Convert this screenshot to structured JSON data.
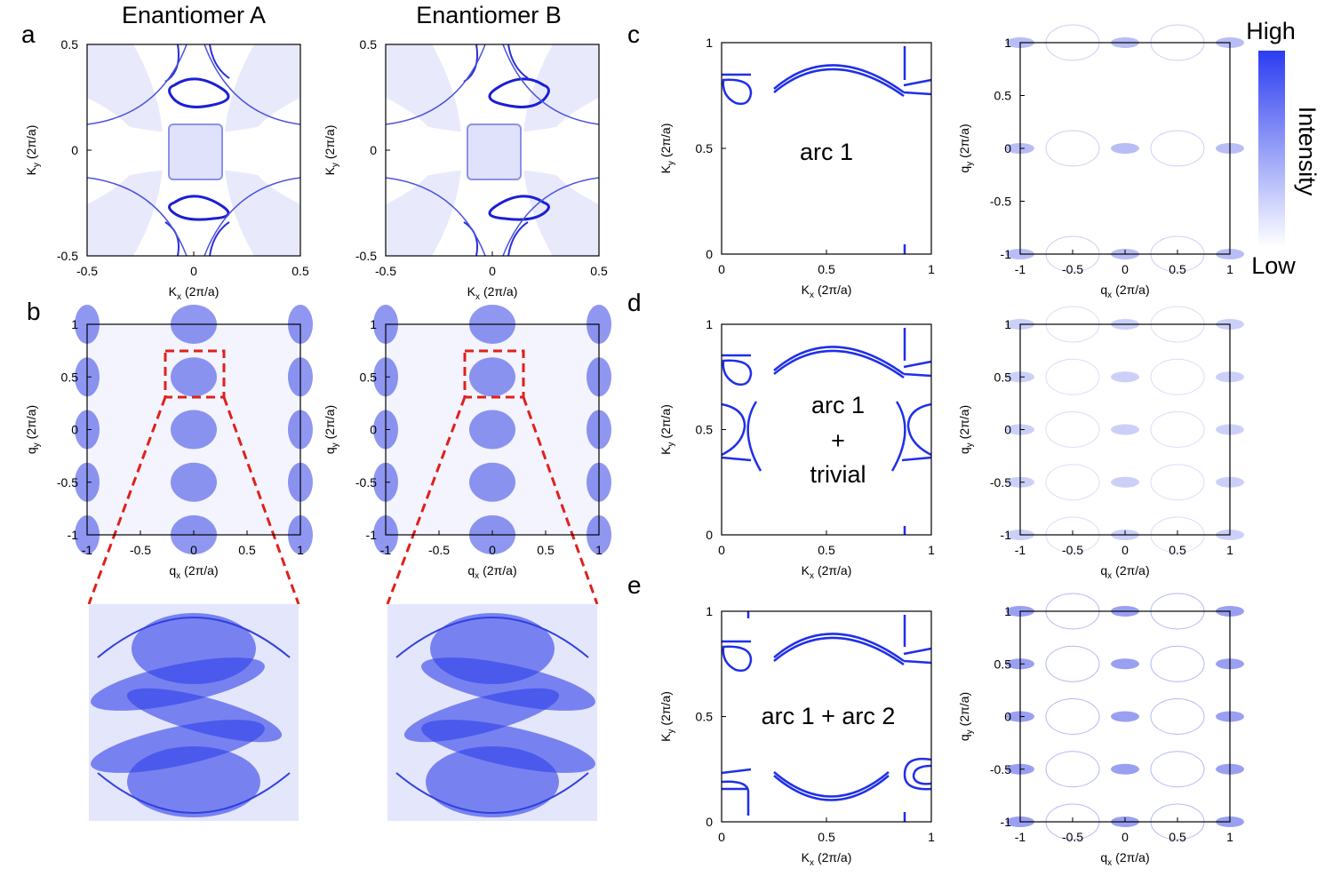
{
  "titles": [
    "Enantiomer A",
    "Enantiomer B"
  ],
  "panel_labels": [
    "a",
    "b",
    "c",
    "d",
    "e"
  ],
  "colorbar": {
    "high": "High",
    "low": "Low",
    "label": "Intensity"
  },
  "annotations": {
    "c": [
      "arc 1"
    ],
    "d": [
      "arc 1",
      "+",
      "trivial"
    ],
    "e": [
      "arc 1 + arc 2"
    ]
  },
  "plots": [
    {
      "xticks": [
        -0.5,
        0,
        0.5
      ],
      "yticks": [
        -0.5,
        0,
        0.5
      ],
      "xlabel": [
        "K",
        "x",
        "(2π/a)"
      ],
      "ylabel": [
        "K",
        "y",
        "(2π/a)"
      ]
    },
    {
      "xticks": [
        -0.5,
        0,
        0.5
      ],
      "yticks": [
        -0.5,
        0,
        0.5
      ],
      "xlabel": [
        "K",
        "x",
        "(2π/a)"
      ],
      "ylabel": [
        "K",
        "y",
        "(2π/a)"
      ]
    },
    {
      "xticks": [
        -1,
        -0.5,
        0,
        0.5,
        1
      ],
      "yticks": [
        -1,
        -0.5,
        0,
        0.5,
        1
      ],
      "xlabel": [
        "q",
        "x",
        "(2π/a)"
      ],
      "ylabel": [
        "q",
        "y",
        "(2π/a)"
      ]
    },
    {
      "xticks": [
        -1,
        -0.5,
        0,
        0.5,
        1
      ],
      "yticks": [
        -1,
        -0.5,
        0,
        0.5,
        1
      ],
      "xlabel": [
        "q",
        "x",
        "(2π/a)"
      ],
      "ylabel": [
        "q",
        "y",
        "(2π/a)"
      ]
    },
    {
      "xticks": [
        0,
        0.5,
        1
      ],
      "yticks": [
        0,
        0.5,
        1
      ],
      "xlabel": [
        "K",
        "x",
        "(2π/a)"
      ],
      "ylabel": [
        "K",
        "y",
        "(2π/a)"
      ]
    },
    {
      "xticks": [
        -1,
        -0.5,
        0,
        0.5,
        1
      ],
      "yticks": [
        -1,
        -0.5,
        0,
        0.5,
        1
      ],
      "xlabel": [
        "q",
        "x",
        "(2π/a)"
      ],
      "ylabel": [
        "q",
        "y",
        "(2π/a)"
      ]
    },
    {
      "xticks": [
        0,
        0.5,
        1
      ],
      "yticks": [
        0,
        0.5,
        1
      ],
      "xlabel": [
        "K",
        "x",
        "(2π/a)"
      ],
      "ylabel": [
        "K",
        "y",
        "(2π/a)"
      ]
    },
    {
      "xticks": [
        -1,
        -0.5,
        0,
        0.5,
        1
      ],
      "yticks": [
        -1,
        -0.5,
        0,
        0.5,
        1
      ],
      "xlabel": [
        "q",
        "x",
        "(2π/a)"
      ],
      "ylabel": [
        "q",
        "y",
        "(2π/a)"
      ]
    },
    {
      "xticks": [
        0,
        0.5,
        1
      ],
      "yticks": [
        0,
        0.5,
        1
      ],
      "xlabel": [
        "K",
        "x",
        "(2π/a)"
      ],
      "ylabel": [
        "K",
        "y",
        "(2π/a)"
      ]
    },
    {
      "xticks": [
        -1,
        -0.5,
        0,
        0.5,
        1
      ],
      "yticks": [
        -1,
        -0.5,
        0,
        0.5,
        1
      ],
      "xlabel": [
        "q",
        "x",
        "(2π/a)"
      ],
      "ylabel": [
        "q",
        "y",
        "(2π/a)"
      ]
    }
  ]
}
